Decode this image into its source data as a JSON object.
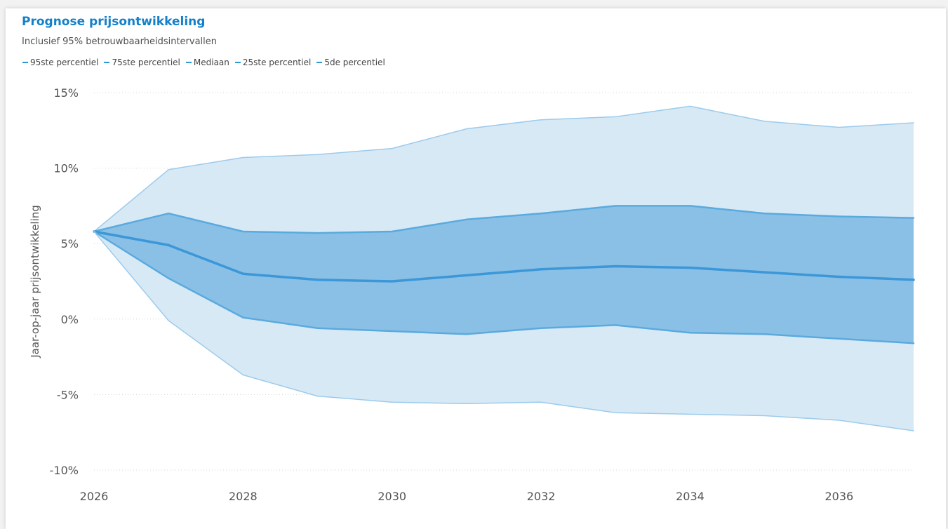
{
  "chart_data": {
    "type": "area",
    "title": "Prognose prijsontwikkeling",
    "subtitle": "Inclusief 95% betrouwbaarheidsintervallen",
    "ylabel": "Jaar-op-jaar prijsontwikkeling",
    "xlabel": "",
    "x": [
      2026,
      2027,
      2028,
      2029,
      2030,
      2031,
      2032,
      2033,
      2034,
      2035,
      2036,
      2037
    ],
    "xticks": [
      2026,
      2028,
      2030,
      2032,
      2034,
      2036
    ],
    "xticklabels": [
      "2026",
      "2028",
      "2030",
      "2032",
      "2034",
      "2036"
    ],
    "xlim": [
      2026,
      2037
    ],
    "ylim": [
      -10,
      15
    ],
    "yticks": [
      15,
      10,
      5,
      0,
      -5,
      -10
    ],
    "yticklabels": [
      "15%",
      "10%",
      "5%",
      "0%",
      "-5%",
      "-10%"
    ],
    "grid": true,
    "legend_position": "top-left",
    "series": [
      {
        "name": "95ste percentiel",
        "values": [
          5.8,
          9.9,
          10.7,
          10.9,
          11.3,
          12.6,
          13.2,
          13.4,
          14.1,
          13.1,
          12.7,
          13.0
        ]
      },
      {
        "name": "75ste percentiel",
        "values": [
          5.8,
          7.0,
          5.8,
          5.7,
          5.8,
          6.6,
          7.0,
          7.5,
          7.5,
          7.0,
          6.8,
          6.7
        ]
      },
      {
        "name": "Mediaan",
        "values": [
          5.8,
          4.9,
          3.0,
          2.6,
          2.5,
          2.9,
          3.3,
          3.5,
          3.4,
          3.1,
          2.8,
          2.6
        ]
      },
      {
        "name": "25ste percentiel",
        "values": [
          5.8,
          2.7,
          0.1,
          -0.6,
          -0.8,
          -1.0,
          -0.6,
          -0.4,
          -0.9,
          -1.0,
          -1.3,
          -1.6
        ]
      },
      {
        "name": "5de percentiel",
        "values": [
          5.8,
          -0.1,
          -3.7,
          -5.1,
          -5.5,
          -5.6,
          -5.5,
          -6.2,
          -6.3,
          -6.4,
          -6.7,
          -7.4
        ]
      }
    ],
    "colors": {
      "outer_band": "#d8e9f6",
      "inner_band": "#8ac0e6",
      "outer_line": "#9ccbec",
      "inner_line": "#5aaade",
      "median_line": "#3c97d8",
      "legend_marker": "#2d9ad8",
      "title": "#1380c9",
      "grid": "#d4d4d4"
    }
  }
}
